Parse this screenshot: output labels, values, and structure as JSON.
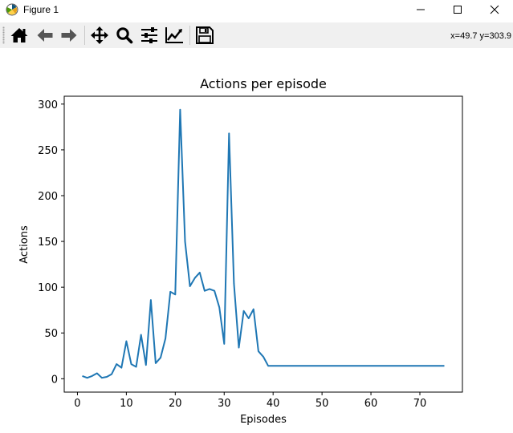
{
  "window": {
    "title": "Figure 1",
    "controls": [
      "minimize-icon",
      "maximize-icon",
      "close-icon"
    ]
  },
  "toolbar": {
    "buttons": [
      {
        "name": "home-button",
        "icon": "home-icon"
      },
      {
        "name": "back-button",
        "icon": "back-arrow-icon"
      },
      {
        "name": "forward-button",
        "icon": "forward-arrow-icon"
      },
      {
        "name": "pan-button",
        "icon": "move-icon"
      },
      {
        "name": "zoom-button",
        "icon": "magnifier-icon"
      },
      {
        "name": "configure-subplots-button",
        "icon": "sliders-icon"
      },
      {
        "name": "edit-axes-button",
        "icon": "chart-line-icon"
      },
      {
        "name": "save-button",
        "icon": "floppy-disk-icon"
      }
    ],
    "coordinates": "x=49.7 y=303.9"
  },
  "chart_data": {
    "type": "line",
    "title": "Actions per episode",
    "xlabel": "Episodes",
    "ylabel": "Actions",
    "xlim": [
      -2.7,
      78.7
    ],
    "ylim": [
      -14.6,
      308.6
    ],
    "xticks": [
      0,
      10,
      20,
      30,
      40,
      50,
      60,
      70
    ],
    "yticks": [
      0,
      50,
      100,
      150,
      200,
      250,
      300
    ],
    "grid": false,
    "legend": "none",
    "color": "#1f77b4",
    "series": [
      {
        "x": [
          1,
          2,
          3,
          4,
          5,
          6,
          7,
          8,
          9,
          10,
          11,
          12,
          13,
          14,
          15,
          16,
          17,
          18,
          19,
          20,
          21,
          22,
          23,
          24,
          25,
          26,
          27,
          28,
          29,
          30,
          31,
          32,
          33,
          34,
          35,
          36,
          37,
          38,
          39,
          40,
          41,
          42,
          43,
          44,
          45,
          46,
          47,
          48,
          49,
          50,
          51,
          52,
          53,
          54,
          55,
          56,
          57,
          58,
          59,
          60,
          61,
          62,
          63,
          64,
          65,
          66,
          67,
          68,
          69,
          70,
          71,
          72,
          73,
          74,
          75
        ],
        "y": [
          3,
          1,
          3,
          6,
          1,
          2,
          5,
          16,
          12,
          41,
          16,
          13,
          48,
          15,
          86,
          17,
          23,
          44,
          95,
          92,
          294,
          150,
          101,
          110,
          116,
          96,
          98,
          96,
          78,
          38,
          268,
          104,
          34,
          74,
          66,
          76,
          30,
          24,
          14,
          14,
          14,
          14,
          14,
          14,
          14,
          14,
          14,
          14,
          14,
          14,
          14,
          14,
          14,
          14,
          14,
          14,
          14,
          14,
          14,
          14,
          14,
          14,
          14,
          14,
          14,
          14,
          14,
          14,
          14,
          14,
          14,
          14,
          14,
          14,
          14
        ]
      }
    ]
  }
}
